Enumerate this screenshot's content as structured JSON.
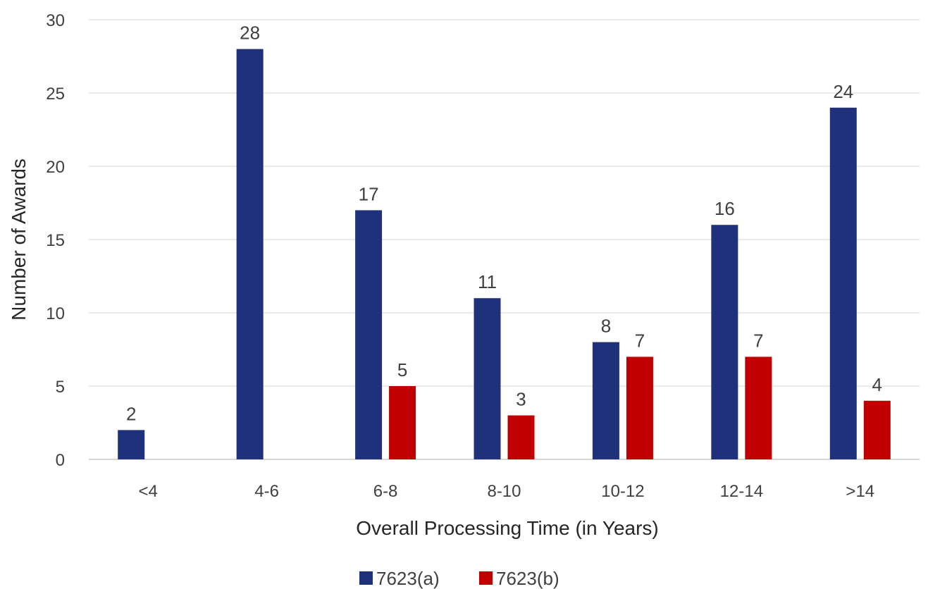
{
  "colors": {
    "series_a": "#20317c",
    "series_b": "#c00000"
  },
  "chart_data": {
    "type": "bar",
    "title": "",
    "xlabel": "Overall Processing Time (in Years)",
    "ylabel": "Number of Awards",
    "ylim": [
      0,
      30
    ],
    "yticks": [
      0,
      5,
      10,
      15,
      20,
      25,
      30
    ],
    "grid": true,
    "legend_position": "bottom",
    "categories": [
      "<4",
      "4-6",
      "6-8",
      "8-10",
      "10-12",
      "12-14",
      ">14"
    ],
    "series": [
      {
        "name": "7623(a)",
        "values": [
          2,
          28,
          17,
          11,
          8,
          16,
          24
        ]
      },
      {
        "name": "7623(b)",
        "values": [
          null,
          null,
          5,
          3,
          7,
          7,
          4
        ]
      }
    ]
  }
}
